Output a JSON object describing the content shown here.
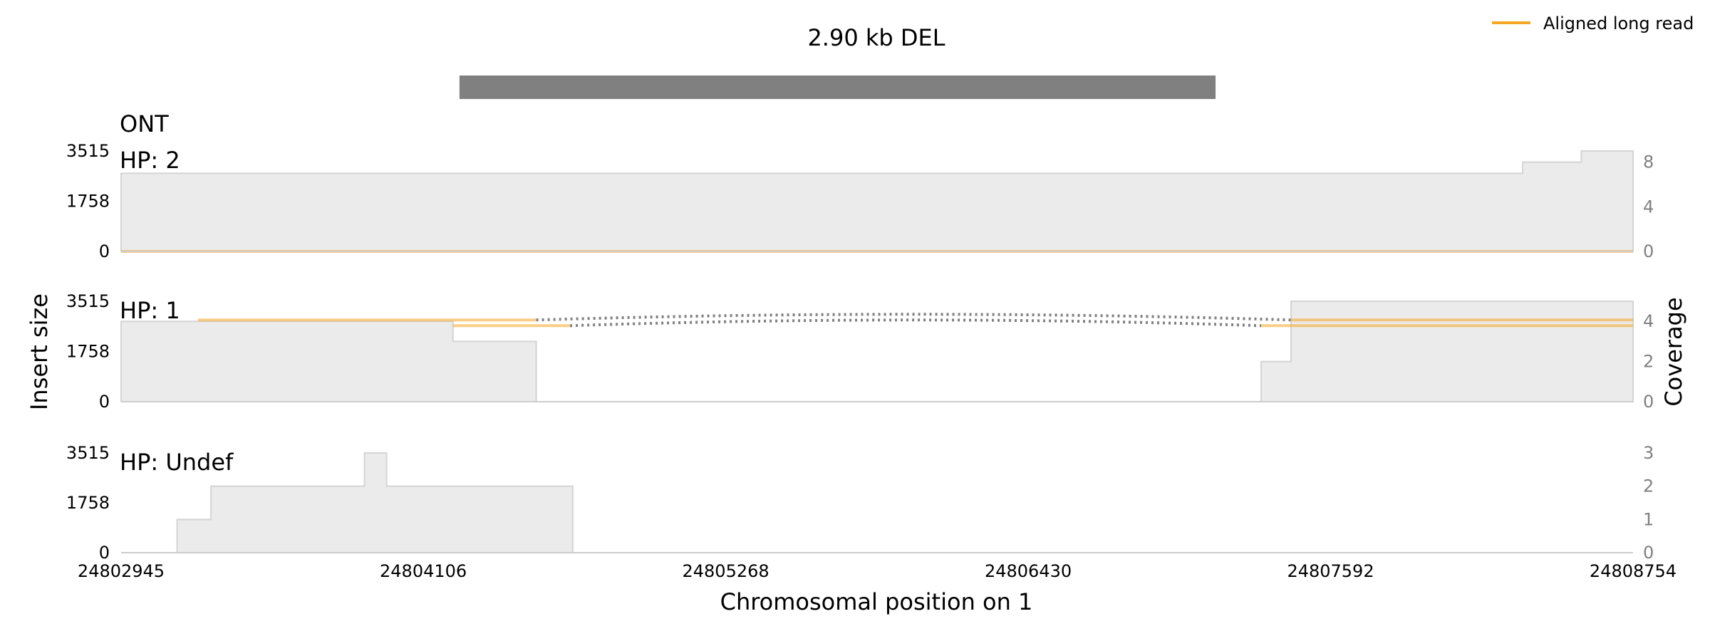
{
  "chart_data": {
    "type": "area",
    "title": "2.90 kb DEL",
    "xlabel": "Chromosomal position on 1",
    "ylabel_left": "Insert size",
    "ylabel_right": "Coverage",
    "xlim": [
      24802945,
      24808754
    ],
    "xticks": [
      "24802945",
      "24804106",
      "24805268",
      "24806430",
      "24807592",
      "24808754"
    ],
    "legend": {
      "label": "Aligned long read",
      "color": "#f5a623",
      "placement": "top-right"
    },
    "sv": {
      "type": "DEL",
      "start": 24804245,
      "end": 24807150,
      "color": "#808080"
    },
    "technology": "ONT",
    "colors": {
      "coverage_fill": "#ebebeb",
      "coverage_line": "#d4d4d4",
      "long_read": "#f5a623",
      "split": "#808080",
      "axis": "#cccccc",
      "tick_text": "#808080"
    },
    "panels": [
      {
        "label": "HP: 2",
        "ylim_left": [
          0,
          3515
        ],
        "yticks_left": [
          "0",
          "1758",
          "3515"
        ],
        "ylim_right": [
          0,
          9
        ],
        "yticks_right": [
          "0",
          "4",
          "8"
        ],
        "coverage_steps": [
          [
            24802945,
            7
          ],
          [
            24807300,
            7
          ],
          [
            24808330,
            8
          ],
          [
            24808555,
            9
          ],
          [
            24808754,
            9
          ]
        ],
        "long_reads": [
          [
            24802945,
            24808754,
            0
          ]
        ],
        "split_arcs": []
      },
      {
        "label": "HP: 1",
        "ylim_left": [
          0,
          3515
        ],
        "yticks_left": [
          "0",
          "1758",
          "3515"
        ],
        "ylim_right": [
          0,
          5
        ],
        "yticks_right": [
          "0",
          "2",
          "4"
        ],
        "coverage_steps": [
          [
            24802945,
            4
          ],
          [
            24804220,
            3
          ],
          [
            24804540,
            0
          ],
          [
            24807325,
            2
          ],
          [
            24807440,
            5
          ],
          [
            24808754,
            5
          ]
        ],
        "long_reads": [
          [
            24803240,
            24804540,
            2860
          ],
          [
            24804220,
            24804670,
            2660
          ],
          [
            24807325,
            24808754,
            2660
          ],
          [
            24807440,
            24808754,
            2860
          ]
        ],
        "split_arcs": [
          [
            24804540,
            24807440,
            2860
          ],
          [
            24804670,
            24807325,
            2660
          ]
        ]
      },
      {
        "label": "HP: Undef",
        "ylim_left": [
          0,
          3515
        ],
        "yticks_left": [
          "0",
          "1758",
          "3515"
        ],
        "ylim_right": [
          0,
          3
        ],
        "yticks_right": [
          "0",
          "1",
          "2",
          "3"
        ],
        "coverage_steps": [
          [
            24802945,
            0
          ],
          [
            24803160,
            1
          ],
          [
            24803290,
            2
          ],
          [
            24803880,
            3
          ],
          [
            24803965,
            2
          ],
          [
            24804680,
            0
          ],
          [
            24808754,
            0
          ]
        ],
        "long_reads": [],
        "split_arcs": []
      }
    ]
  }
}
